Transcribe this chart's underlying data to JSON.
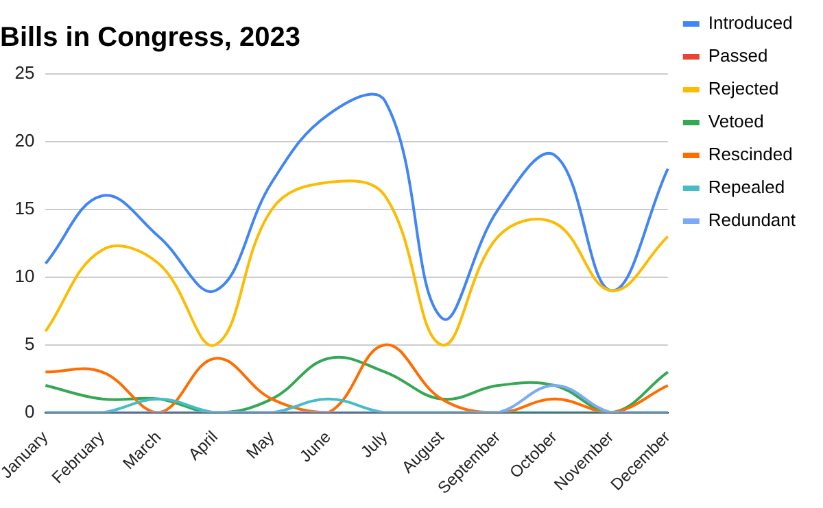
{
  "chart_data": {
    "type": "line",
    "title": "Bills in Congress, 2023",
    "categories": [
      "January",
      "February",
      "March",
      "April",
      "May",
      "June",
      "July",
      "August",
      "September",
      "October",
      "November",
      "December"
    ],
    "series": [
      {
        "name": "Introduced",
        "color": "#4285f4",
        "values": [
          11,
          16,
          13,
          9,
          17,
          22,
          23,
          7,
          15,
          19,
          9,
          18
        ]
      },
      {
        "name": "Passed",
        "color": "#ea4335",
        "values": [
          null,
          null,
          null,
          null,
          null,
          null,
          null,
          null,
          null,
          null,
          null,
          null
        ]
      },
      {
        "name": "Rejected",
        "color": "#fbbc04",
        "values": [
          6,
          12,
          11,
          5,
          15,
          17,
          16,
          5,
          13,
          14,
          9,
          13
        ]
      },
      {
        "name": "Vetoed",
        "color": "#34a853",
        "values": [
          2,
          1,
          1,
          0,
          1,
          4,
          3,
          1,
          2,
          2,
          0,
          3
        ]
      },
      {
        "name": "Rescinded",
        "color": "#ff6d01",
        "values": [
          3,
          3,
          0,
          4,
          1,
          0,
          5,
          1,
          0,
          1,
          0,
          2
        ]
      },
      {
        "name": "Repealed",
        "color": "#46bdc6",
        "values": [
          0,
          0,
          1,
          0,
          0,
          1,
          0,
          0,
          0,
          0,
          0,
          0
        ]
      },
      {
        "name": "Redundant",
        "color": "#7baaf7",
        "values": [
          0,
          0,
          0,
          0,
          0,
          0,
          0,
          0,
          0,
          2,
          0,
          0
        ]
      }
    ],
    "ylim": [
      0,
      25
    ],
    "yticks": [
      0,
      5,
      10,
      15,
      20,
      25
    ],
    "grid": "y",
    "legend": "right",
    "marker": "none",
    "line_style": "solid"
  }
}
